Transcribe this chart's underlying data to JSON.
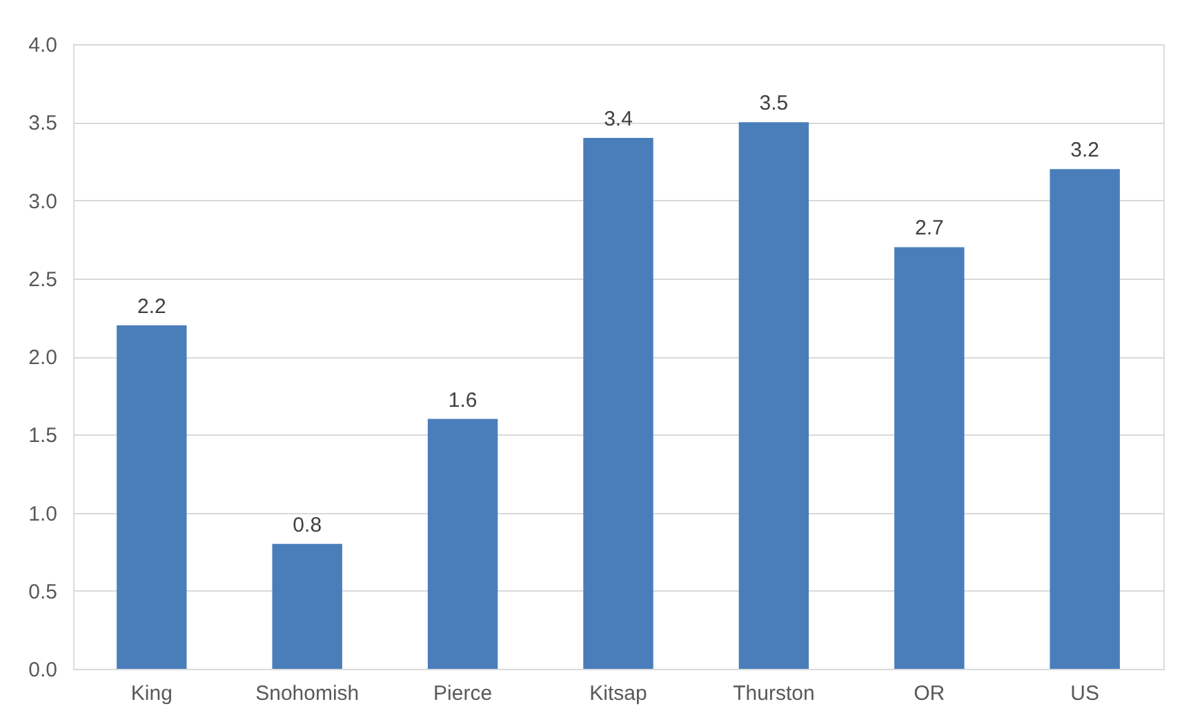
{
  "chart_data": {
    "type": "bar",
    "categories": [
      "King",
      "Snohomish",
      "Pierce",
      "Kitsap",
      "Thurston",
      "OR",
      "US"
    ],
    "values": [
      2.2,
      0.8,
      1.6,
      3.4,
      3.5,
      2.7,
      3.2
    ],
    "color": "#4a7ebb",
    "data_labels": true,
    "grid": "y",
    "ylim": [
      0,
      4
    ],
    "yticks": [
      {
        "value": 0,
        "label": "0.0"
      },
      {
        "value": 0.5,
        "label": "0.5"
      },
      {
        "value": 1,
        "label": "1.0"
      },
      {
        "value": 1.5,
        "label": "1.5"
      },
      {
        "value": 2,
        "label": "2.0"
      },
      {
        "value": 2.5,
        "label": "2.5"
      },
      {
        "value": 3,
        "label": "3.0"
      },
      {
        "value": 3.5,
        "label": "3.5"
      },
      {
        "value": 4,
        "label": "4.0"
      }
    ]
  }
}
